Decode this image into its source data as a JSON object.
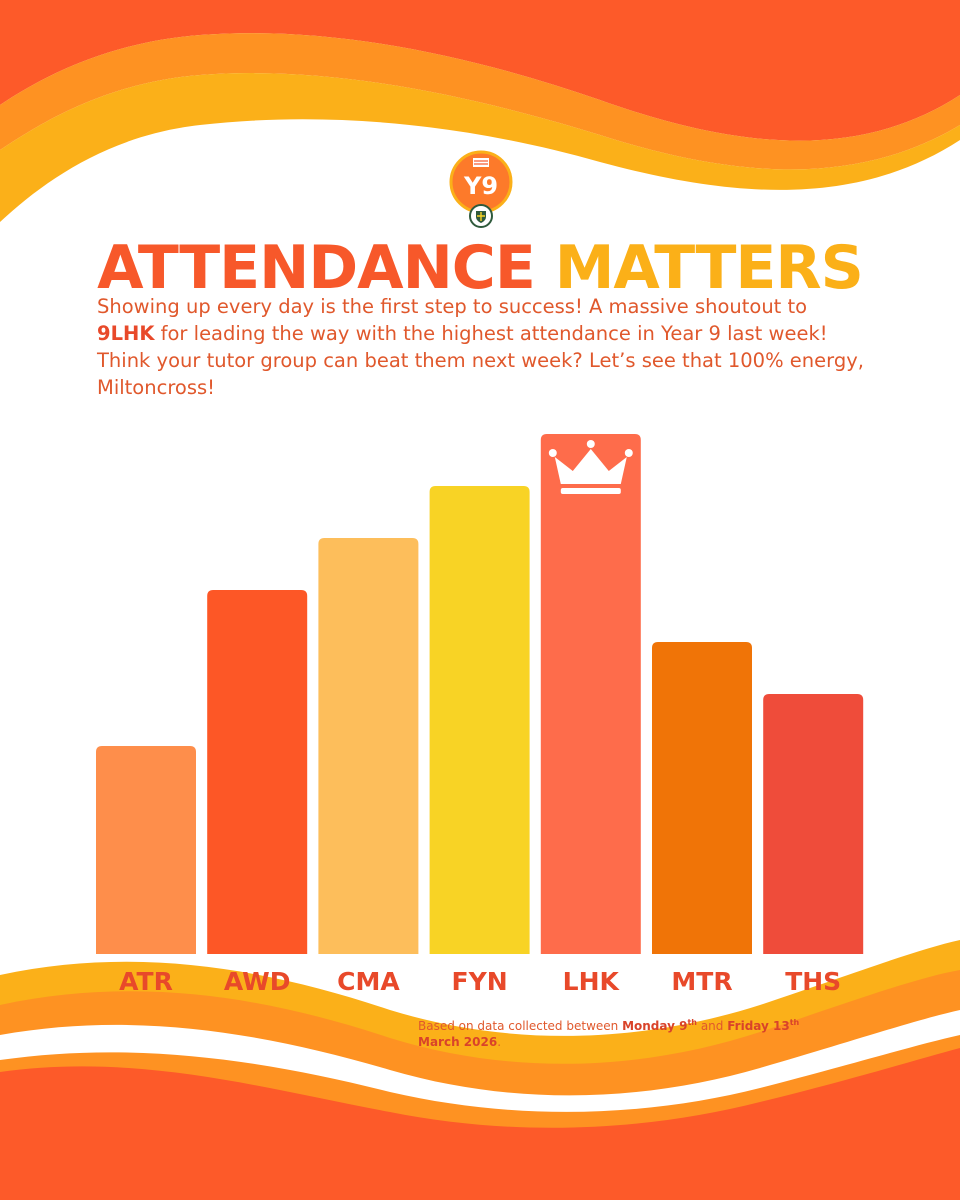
{
  "badge": {
    "text": "Y9",
    "icon": "y9-house-badge-icon"
  },
  "headline": {
    "part1": "ATTENDANCE",
    "part2": "MATTERS"
  },
  "intro": {
    "t1": "Showing up every day is the first step to success! A massive shoutout to ",
    "highlight": "9LHK",
    "t2": " for leading the way with the highest attendance in Year 9 last week!",
    "t3": "Think your tutor group can beat them next week? Let’s see that 100% energy, Miltoncross!"
  },
  "footnote": {
    "t1": "Based on data collected between ",
    "d1": "Monday 9",
    "d1_sup": "th",
    "t2": " and ",
    "d2": "Friday 13",
    "d2_sup": "th",
    "d3": "March 2026",
    "t3": "."
  },
  "colors": {
    "orange_deep": "#f7582a",
    "orange_mid": "#fd8f24",
    "yellow": "#fbb018",
    "label": "#e8492a"
  },
  "chart_data": {
    "type": "bar",
    "title": "",
    "xlabel": "",
    "ylabel": "",
    "ylim": [
      0,
      10
    ],
    "categories": [
      "ATR",
      "AWD",
      "CMA",
      "FYN",
      "LHK",
      "MTR",
      "THS"
    ],
    "values": [
      4,
      7,
      8,
      9,
      10,
      6,
      5
    ],
    "colors": [
      "#fe8e4b",
      "#fd5726",
      "#fdbe5b",
      "#f8d325",
      "#fe6c4b",
      "#f07407",
      "#ef4c3a"
    ],
    "winner": "LHK",
    "winner_icon": "crown-icon"
  }
}
